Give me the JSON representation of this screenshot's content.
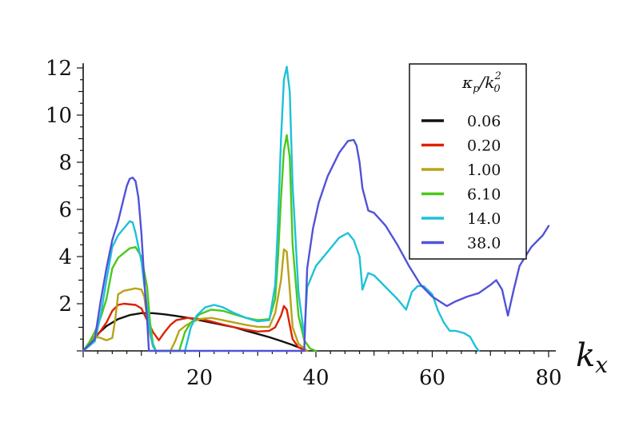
{
  "chart_data": {
    "type": "line",
    "title": "",
    "xlabel": "k",
    "xlabel_sub": "x",
    "ylabel": "",
    "xlim": [
      0,
      82
    ],
    "ylim": [
      0,
      12.2
    ],
    "xticks": [
      20,
      40,
      60,
      80
    ],
    "yticks": [
      2,
      4,
      6,
      8,
      10,
      12
    ],
    "grid": false,
    "legend": {
      "placement": "top-right",
      "title_main": "κ",
      "title_sub": "p",
      "title_slash": "/k",
      "title_sub2": "0",
      "title_sup": "2"
    },
    "series": [
      {
        "name": "0.06",
        "color": "#111111",
        "x": [
          0,
          2,
          4,
          6,
          8,
          10,
          12,
          14,
          16,
          18,
          20,
          22,
          24,
          26,
          28,
          30,
          32,
          34,
          36,
          38
        ],
        "y": [
          0,
          0.6,
          1.05,
          1.35,
          1.52,
          1.6,
          1.6,
          1.55,
          1.48,
          1.4,
          1.3,
          1.2,
          1.1,
          1.0,
          0.85,
          0.72,
          0.58,
          0.42,
          0.25,
          0.05
        ]
      },
      {
        "name": "0.20",
        "color": "#dd2200",
        "x": [
          0,
          2,
          4,
          5,
          6,
          7,
          9,
          10,
          11,
          12,
          13,
          14,
          15,
          16,
          18,
          20,
          22,
          24,
          26,
          28,
          30,
          32,
          33,
          34,
          34.5,
          35,
          35.5,
          36,
          37,
          38.5
        ],
        "y": [
          0,
          0.5,
          1.2,
          1.7,
          1.95,
          2.0,
          1.95,
          1.8,
          1.3,
          0.8,
          0.45,
          0.8,
          1.1,
          1.3,
          1.4,
          1.35,
          1.25,
          1.12,
          1.0,
          0.9,
          0.82,
          0.85,
          1.0,
          1.5,
          1.9,
          1.75,
          1.1,
          0.5,
          0.15,
          0
        ]
      },
      {
        "name": "1.00",
        "color": "#b8a318",
        "x": [
          0,
          1,
          2,
          3,
          4,
          5,
          5.5,
          6,
          7,
          8,
          9,
          10,
          10.5,
          11,
          11.5,
          12,
          12.5,
          15,
          15.8,
          16.5,
          17.5,
          18.5,
          20,
          22,
          24,
          26,
          28,
          30,
          32,
          33,
          34,
          34.5,
          35,
          35.5,
          36,
          37,
          38.5
        ],
        "y": [
          0,
          0.25,
          0.6,
          0.55,
          0.45,
          0.55,
          1.3,
          2.4,
          2.55,
          2.6,
          2.65,
          2.6,
          2.3,
          1.4,
          0.7,
          0.2,
          0,
          0,
          0.4,
          0.85,
          1.05,
          1.2,
          1.35,
          1.4,
          1.3,
          1.2,
          1.1,
          1.02,
          1.02,
          1.6,
          3.0,
          4.3,
          4.2,
          2.6,
          1.0,
          0.3,
          0
        ]
      },
      {
        "name": "6.10",
        "color": "#4ac81c",
        "x": [
          0,
          1,
          2,
          3,
          4,
          5,
          6,
          7,
          8,
          9,
          10,
          11,
          11.5,
          12,
          12.5,
          16.5,
          17,
          17.5,
          18.5,
          20,
          22,
          24,
          26,
          28,
          30,
          32,
          33,
          33.5,
          34,
          34.5,
          35,
          35.5,
          36,
          37,
          38,
          39,
          40
        ],
        "y": [
          0,
          0.35,
          0.8,
          1.4,
          2.2,
          3.5,
          3.95,
          4.15,
          4.35,
          4.4,
          4.0,
          2.7,
          1.2,
          0.3,
          0,
          0,
          0.4,
          0.8,
          1.2,
          1.55,
          1.75,
          1.7,
          1.55,
          1.4,
          1.3,
          1.35,
          2.2,
          4.0,
          6.5,
          8.5,
          9.15,
          8.2,
          4.5,
          1.5,
          0.45,
          0.1,
          0
        ]
      },
      {
        "name": "14.0",
        "color": "#1ec1d8",
        "x": [
          0,
          2,
          3,
          4,
          5,
          6,
          7,
          8,
          8.5,
          9,
          10,
          11,
          11.5,
          12,
          12.5,
          17.5,
          18,
          18.5,
          19.5,
          21,
          22.5,
          24,
          26,
          28,
          30,
          32,
          33,
          33.5,
          34,
          34.5,
          35,
          35.5,
          36,
          37,
          38,
          38.5,
          40,
          42,
          44,
          45.5,
          46.5,
          47.5,
          48,
          49,
          50,
          52,
          54,
          55.5,
          56.5,
          57.5,
          58.5,
          60,
          61,
          62,
          63,
          64,
          65.5,
          66.5,
          67.5,
          68
        ],
        "y": [
          0,
          0.4,
          1.5,
          3.0,
          4.4,
          4.9,
          5.2,
          5.5,
          5.45,
          5.0,
          3.8,
          1.8,
          0.8,
          0.2,
          0,
          0,
          0.5,
          1.0,
          1.5,
          1.85,
          1.95,
          1.85,
          1.6,
          1.4,
          1.25,
          1.3,
          2.8,
          5.5,
          9.0,
          11.5,
          12.05,
          11.0,
          7.0,
          2.5,
          0.6,
          2.7,
          3.6,
          4.2,
          4.8,
          5.0,
          4.7,
          4.0,
          2.6,
          3.3,
          3.2,
          2.7,
          2.2,
          1.75,
          2.5,
          2.75,
          2.75,
          2.4,
          1.7,
          1.2,
          0.85,
          0.85,
          0.75,
          0.6,
          0.15,
          0
        ]
      },
      {
        "name": "38.0",
        "color": "#5252d8",
        "x": [
          0,
          2,
          3,
          4,
          5,
          6,
          7,
          7.5,
          8,
          8.5,
          9,
          9.5,
          10,
          10.5,
          11,
          11.3,
          38,
          38.5,
          39.5,
          40.5,
          42,
          44,
          45.5,
          46.5,
          47,
          47.5,
          48,
          49,
          50,
          52,
          54,
          56,
          58,
          60,
          62.5,
          64,
          66,
          68,
          70,
          71,
          72,
          73,
          74,
          75,
          77,
          79,
          80
        ],
        "y": [
          0,
          0.5,
          2.1,
          3.5,
          4.7,
          5.5,
          6.5,
          7.0,
          7.3,
          7.35,
          7.2,
          6.5,
          5.0,
          3.0,
          1.3,
          0,
          0,
          3.5,
          5.2,
          6.3,
          7.4,
          8.4,
          8.9,
          8.95,
          8.7,
          8.0,
          6.9,
          5.95,
          5.85,
          5.3,
          4.5,
          3.6,
          2.8,
          2.3,
          1.9,
          2.1,
          2.3,
          2.45,
          2.8,
          3.0,
          2.6,
          1.5,
          2.6,
          3.6,
          4.4,
          4.9,
          5.3
        ]
      }
    ]
  }
}
